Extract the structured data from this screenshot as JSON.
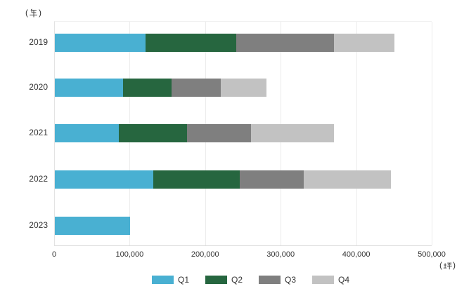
{
  "page": {
    "background": "#ffffff",
    "text_color": "#333333",
    "grid_color": "#ececec"
  },
  "labels": {
    "year_unit": "（年）",
    "tsubo_unit": "（坪）",
    "paren_open": "(",
    "paren_close": ")"
  },
  "chart_data": {
    "type": "bar",
    "orientation": "horizontal",
    "stacked": true,
    "title": "",
    "xlabel": "（坪）",
    "ylabel": "（年）",
    "grid": true,
    "legend_position": "bottom",
    "categories": [
      "2019",
      "2020",
      "2021",
      "2022",
      "2023"
    ],
    "series": [
      {
        "name": "Q1",
        "color": "#49b0d2",
        "values": [
          120000,
          90000,
          85000,
          130000,
          100000
        ]
      },
      {
        "name": "Q2",
        "color": "#26663f",
        "values": [
          120000,
          65000,
          90000,
          115000,
          0
        ]
      },
      {
        "name": "Q3",
        "color": "#7f7f7f",
        "values": [
          130000,
          65000,
          85000,
          85000,
          0
        ]
      },
      {
        "name": "Q4",
        "color": "#c2c2c2",
        "values": [
          80000,
          60000,
          110000,
          115000,
          0
        ]
      }
    ],
    "totals": [
      450000,
      280000,
      370000,
      445000,
      100000
    ],
    "x_axis": {
      "min": 0,
      "max": 500000,
      "tick_interval": 100000,
      "tick_labels": [
        "0",
        "100,000",
        "200,000",
        "300,000",
        "400,000",
        "500,000"
      ],
      "unit_label": "（坪）"
    },
    "y_axis": {
      "unit_label": "（年）"
    },
    "legend_entries": [
      "Q1",
      "Q2",
      "Q3",
      "Q4"
    ]
  }
}
